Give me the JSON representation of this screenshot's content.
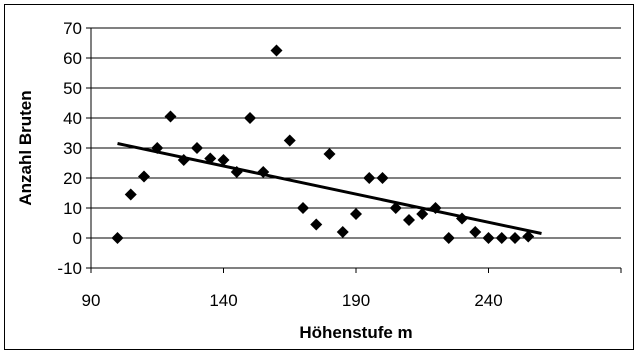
{
  "chart_data": {
    "type": "scatter",
    "title": "",
    "xlabel": "Höhenstufe m",
    "ylabel": "Anzahl Bruten",
    "xlim": [
      90,
      290
    ],
    "ylim": [
      -10,
      70
    ],
    "x_ticks": [
      90,
      140,
      190,
      240
    ],
    "y_ticks": [
      -10,
      0,
      10,
      20,
      30,
      40,
      50,
      60,
      70
    ],
    "grid": "horizontal",
    "legend": "none",
    "marker_color": "#000000",
    "series": [
      {
        "marker": "diamond",
        "points": [
          [
            100,
            0
          ],
          [
            105,
            14.5
          ],
          [
            110,
            20.5
          ],
          [
            115,
            30
          ],
          [
            120,
            40.5
          ],
          [
            125,
            26
          ],
          [
            130,
            30
          ],
          [
            135,
            26.5
          ],
          [
            140,
            26
          ],
          [
            145,
            22
          ],
          [
            150,
            40
          ],
          [
            155,
            22
          ],
          [
            160,
            62.5
          ],
          [
            165,
            32.5
          ],
          [
            170,
            10
          ],
          [
            175,
            4.5
          ],
          [
            180,
            28
          ],
          [
            185,
            2
          ],
          [
            190,
            8
          ],
          [
            195,
            20
          ],
          [
            200,
            20
          ],
          [
            205,
            10
          ],
          [
            210,
            6
          ],
          [
            215,
            8
          ],
          [
            220,
            10
          ],
          [
            225,
            0
          ],
          [
            230,
            6.5
          ],
          [
            235,
            2
          ],
          [
            240,
            0
          ],
          [
            245,
            0
          ],
          [
            250,
            0
          ],
          [
            255,
            0.5
          ]
        ]
      }
    ],
    "trendline": {
      "type": "linear",
      "x": [
        100,
        260
      ],
      "y": [
        31.5,
        1.5
      ]
    }
  }
}
